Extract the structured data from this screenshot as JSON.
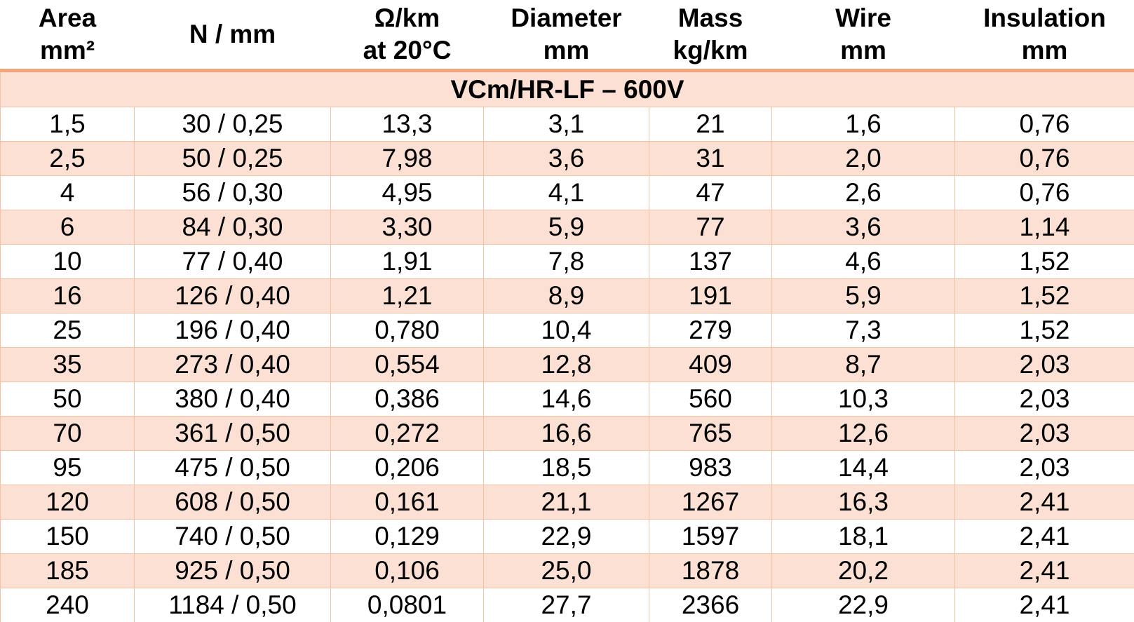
{
  "header": [
    [
      "Area",
      "mm²"
    ],
    [
      "N / mm"
    ],
    [
      "Ω/km",
      "at 20°C"
    ],
    [
      "Diameter",
      "mm"
    ],
    [
      "Mass",
      "kg/km"
    ],
    [
      "Wire",
      "mm"
    ],
    [
      "Insulation",
      "mm"
    ]
  ],
  "section": "VCm/HR-LF – 600V",
  "rows": [
    [
      "1,5",
      "30 / 0,25",
      "13,3",
      "3,1",
      "21",
      "1,6",
      "0,76"
    ],
    [
      "2,5",
      "50 / 0,25",
      "7,98",
      "3,6",
      "31",
      "2,0",
      "0,76"
    ],
    [
      "4",
      "56 / 0,30",
      "4,95",
      "4,1",
      "47",
      "2,6",
      "0,76"
    ],
    [
      "6",
      "84 / 0,30",
      "3,30",
      "5,9",
      "77",
      "3,6",
      "1,14"
    ],
    [
      "10",
      "77 / 0,40",
      "1,91",
      "7,8",
      "137",
      "4,6",
      "1,52"
    ],
    [
      "16",
      "126 / 0,40",
      "1,21",
      "8,9",
      "191",
      "5,9",
      "1,52"
    ],
    [
      "25",
      "196 / 0,40",
      "0,780",
      "10,4",
      "279",
      "7,3",
      "1,52"
    ],
    [
      "35",
      "273 / 0,40",
      "0,554",
      "12,8",
      "409",
      "8,7",
      "2,03"
    ],
    [
      "50",
      "380 / 0,40",
      "0,386",
      "14,6",
      "560",
      "10,3",
      "2,03"
    ],
    [
      "70",
      "361 / 0,50",
      "0,272",
      "16,6",
      "765",
      "12,6",
      "2,03"
    ],
    [
      "95",
      "475 / 0,50",
      "0,206",
      "18,5",
      "983",
      "14,4",
      "2,03"
    ],
    [
      "120",
      "608 / 0,50",
      "0,161",
      "21,1",
      "1267",
      "16,3",
      "2,41"
    ],
    [
      "150",
      "740 / 0,50",
      "0,129",
      "22,9",
      "1597",
      "18,1",
      "2,41"
    ],
    [
      "185",
      "925 / 0,50",
      "0,106",
      "25,0",
      "1878",
      "20,2",
      "2,41"
    ],
    [
      "240",
      "1184 / 0,50",
      "0,0801",
      "27,7",
      "2366",
      "22,9",
      "2,41"
    ]
  ]
}
